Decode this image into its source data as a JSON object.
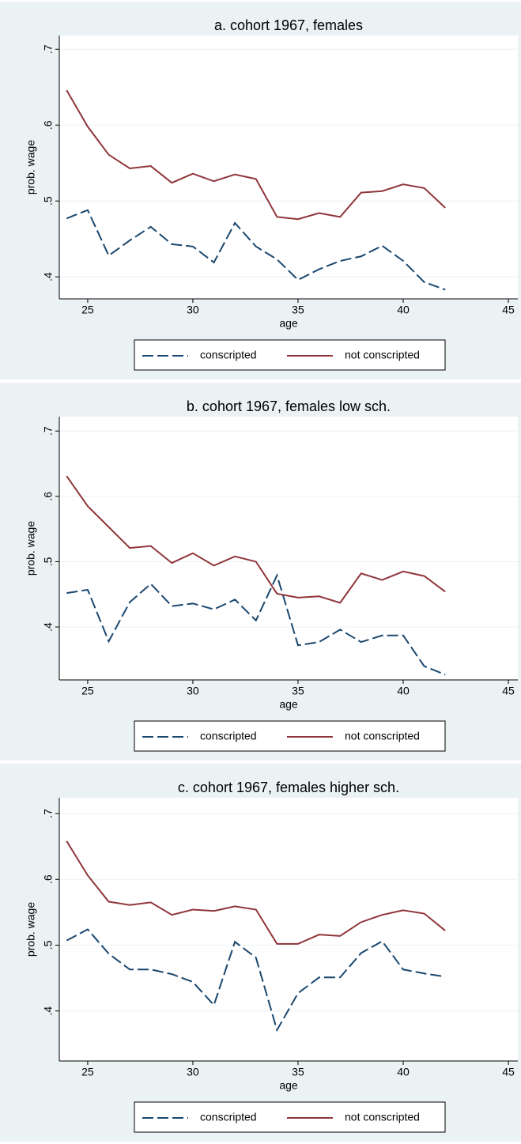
{
  "chart_data": [
    {
      "type": "line",
      "title": "a. cohort 1967, females",
      "x_label": "age",
      "y_label": "prob. wage",
      "x": [
        24,
        25,
        26,
        27,
        28,
        29,
        30,
        31,
        32,
        33,
        34,
        35,
        36,
        37,
        38,
        39,
        40,
        41,
        42
      ],
      "series": [
        {
          "name": "conscripted",
          "color": "#1a476f",
          "dash": true,
          "values": [
            0.477,
            0.488,
            0.428,
            0.448,
            0.466,
            0.443,
            0.44,
            0.419,
            0.471,
            0.44,
            0.423,
            0.396,
            0.41,
            0.421,
            0.427,
            0.441,
            0.421,
            0.393,
            0.383
          ]
        },
        {
          "name": "not conscripted",
          "color": "#90353b",
          "dash": false,
          "values": [
            0.646,
            0.598,
            0.561,
            0.543,
            0.546,
            0.524,
            0.536,
            0.526,
            0.535,
            0.529,
            0.479,
            0.476,
            0.484,
            0.479,
            0.511,
            0.513,
            0.522,
            0.517,
            0.491
          ]
        }
      ],
      "xlim": [
        23.65,
        45.45
      ],
      "xticks": [
        25,
        30,
        35,
        40,
        45
      ],
      "ylim": [
        0.371,
        0.718
      ],
      "yticks": [
        {
          "value": 0.4,
          "label": ".4"
        },
        {
          "value": 0.5,
          "label": ".5"
        },
        {
          "value": 0.6,
          "label": ".6"
        },
        {
          "value": 0.7,
          "label": ".7"
        }
      ],
      "grid": true,
      "legend": "bottom"
    },
    {
      "type": "line",
      "title": "b. cohort 1967, females low sch.",
      "x_label": "age",
      "y_label": "prob. wage",
      "x": [
        24,
        25,
        26,
        27,
        28,
        29,
        30,
        31,
        32,
        33,
        34,
        35,
        36,
        37,
        38,
        39,
        40,
        41,
        42
      ],
      "series": [
        {
          "name": "conscripted",
          "color": "#1a476f",
          "dash": true,
          "values": [
            0.452,
            0.457,
            0.378,
            0.438,
            0.466,
            0.432,
            0.436,
            0.427,
            0.442,
            0.41,
            0.479,
            0.372,
            0.377,
            0.396,
            0.377,
            0.387,
            0.387,
            0.34,
            0.327
          ]
        },
        {
          "name": "not conscripted",
          "color": "#90353b",
          "dash": false,
          "values": [
            0.631,
            0.585,
            0.553,
            0.521,
            0.524,
            0.498,
            0.513,
            0.494,
            0.508,
            0.5,
            0.451,
            0.445,
            0.447,
            0.437,
            0.482,
            0.472,
            0.485,
            0.478,
            0.454
          ]
        }
      ],
      "xlim": [
        23.65,
        45.45
      ],
      "xticks": [
        25,
        30,
        35,
        40,
        45
      ],
      "ylim": [
        0.319,
        0.722
      ],
      "yticks": [
        {
          "value": 0.4,
          "label": ".4"
        },
        {
          "value": 0.5,
          "label": ".5"
        },
        {
          "value": 0.6,
          "label": ".6"
        },
        {
          "value": 0.7,
          "label": ".7"
        }
      ],
      "grid": true,
      "legend": "bottom"
    },
    {
      "type": "line",
      "title": "c. cohort 1967, females higher sch.",
      "x_label": "age",
      "y_label": "prob. wage",
      "x": [
        24,
        25,
        26,
        27,
        28,
        29,
        30,
        31,
        32,
        33,
        34,
        35,
        36,
        37,
        38,
        39,
        40,
        41,
        42
      ],
      "series": [
        {
          "name": "conscripted",
          "color": "#1a476f",
          "dash": true,
          "values": [
            0.507,
            0.524,
            0.487,
            0.463,
            0.463,
            0.456,
            0.444,
            0.409,
            0.505,
            0.481,
            0.371,
            0.427,
            0.451,
            0.451,
            0.488,
            0.506,
            0.463,
            0.457,
            0.452
          ]
        },
        {
          "name": "not conscripted",
          "color": "#90353b",
          "dash": false,
          "values": [
            0.658,
            0.606,
            0.566,
            0.561,
            0.565,
            0.546,
            0.554,
            0.552,
            0.559,
            0.554,
            0.502,
            0.502,
            0.516,
            0.514,
            0.535,
            0.546,
            0.553,
            0.548,
            0.522
          ]
        }
      ],
      "xlim": [
        23.65,
        45.45
      ],
      "xticks": [
        25,
        30,
        35,
        40,
        45
      ],
      "ylim": [
        0.324,
        0.724
      ],
      "yticks": [
        {
          "value": 0.4,
          "label": ".4"
        },
        {
          "value": 0.5,
          "label": ".5"
        },
        {
          "value": 0.6,
          "label": ".6"
        },
        {
          "value": 0.7,
          "label": ".7"
        }
      ],
      "grid": true,
      "legend": "bottom"
    }
  ]
}
